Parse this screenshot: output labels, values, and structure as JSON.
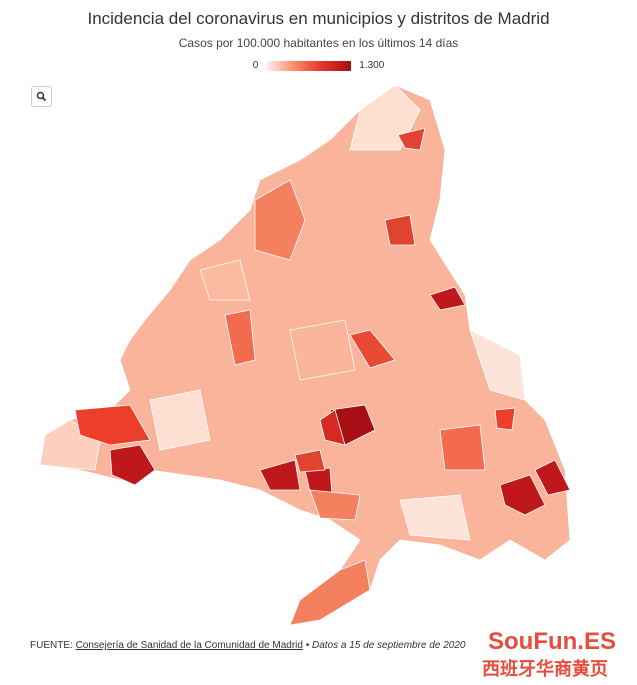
{
  "header": {
    "title": "Incidencia del coronavirus en municipios y distritos de Madrid",
    "subtitle": "Casos por 100.000 habitantes en los últimos 14 días"
  },
  "legend": {
    "min": "0",
    "max": "1.300"
  },
  "footer": {
    "label": "FUENTE:",
    "link": "Consejería de Sanidad de la Comunidad de Madrid",
    "date": "• Datos a 15 de septiembre de 2020"
  },
  "watermark": {
    "brand": "SouFun.ES",
    "tagline": "西班牙华商黄页"
  }
}
